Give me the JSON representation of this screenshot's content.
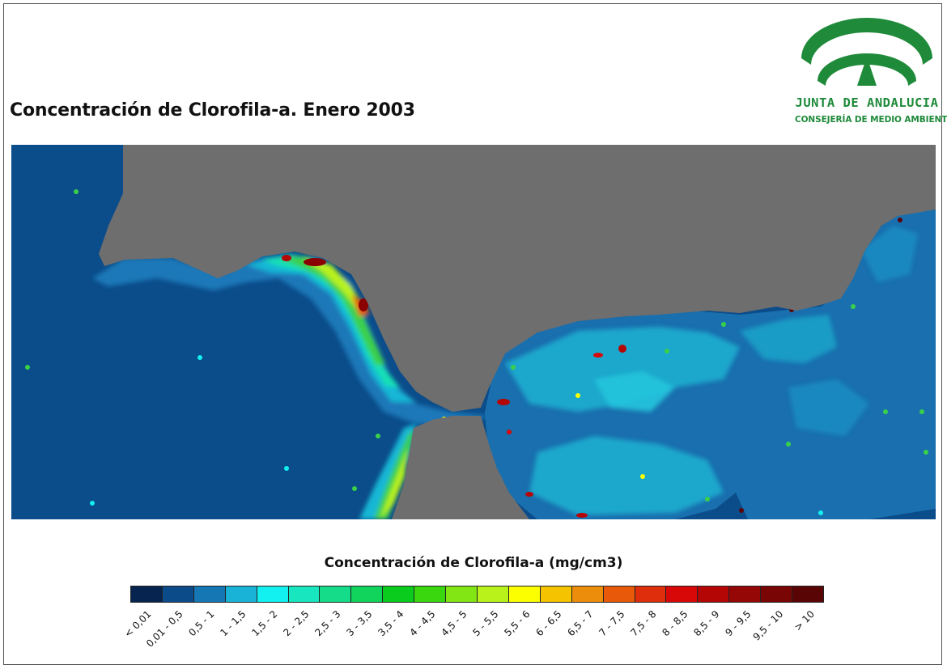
{
  "title": "Concentración de Clorofila-a. Enero 2003",
  "logo": {
    "name": "JUNTA DE ANDALUCIA",
    "subtitle": "CONSEJERÍA DE MEDIO AMBIENTE",
    "color": "#1f8a3a"
  },
  "map": {
    "land_color": "#6e6e6e",
    "description_colors": {
      "open_ocean": "#0b4c8a",
      "coastal_low": "#1a78b8",
      "mid": "#19b7d6",
      "high": "#3ad04a",
      "peak": "#8b0000"
    }
  },
  "legend": {
    "title": "Concentración de Clorofila-a (mg/cm3)",
    "classes": [
      {
        "label": "< 0,01",
        "color": "#06244f"
      },
      {
        "label": "0,01 - 0,5",
        "color": "#0c4b8a"
      },
      {
        "label": "0,5 - 1",
        "color": "#1578b5"
      },
      {
        "label": "1 - 1,5",
        "color": "#1ab3d8"
      },
      {
        "label": "1,5 - 2",
        "color": "#13f0f0"
      },
      {
        "label": "2 - 2,5",
        "color": "#17e6bf"
      },
      {
        "label": "2,5 - 3",
        "color": "#14dc88"
      },
      {
        "label": "3 - 3,5",
        "color": "#10d45b"
      },
      {
        "label": "3,5 - 4",
        "color": "#0acc1c"
      },
      {
        "label": "4 - 4,5",
        "color": "#3ad70f"
      },
      {
        "label": "4,5 - 5",
        "color": "#82e614"
      },
      {
        "label": "5 - 5,5",
        "color": "#b8f21a"
      },
      {
        "label": "5,5 - 6",
        "color": "#fbff00"
      },
      {
        "label": "6 - 6,5",
        "color": "#f5c300"
      },
      {
        "label": "6,5 - 7",
        "color": "#ec8e0c"
      },
      {
        "label": "7 - 7,5",
        "color": "#e85a0a"
      },
      {
        "label": "7,5 - 8",
        "color": "#df2e0c"
      },
      {
        "label": "8 - 8,5",
        "color": "#d80808"
      },
      {
        "label": "8,5 - 9",
        "color": "#b50606"
      },
      {
        "label": "9 - 9,5",
        "color": "#950606"
      },
      {
        "label": "9,5 - 10",
        "color": "#7a0505"
      },
      {
        "label": "> 10",
        "color": "#5a0505"
      }
    ]
  }
}
